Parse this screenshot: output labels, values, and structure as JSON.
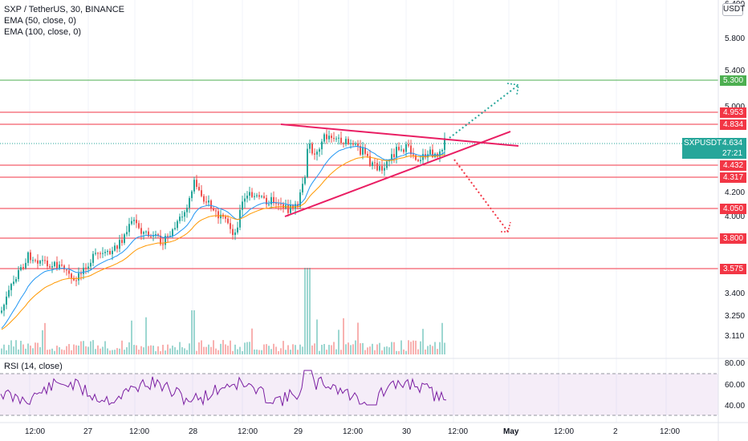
{
  "legend": {
    "title": "SXP / TetherUS, 30, BINANCE",
    "ema50": "EMA (50, close, 0)",
    "ema100": "EMA (100, close, 0)"
  },
  "rsi_legend": "RSI (14, close)",
  "currency_button": "USDT",
  "price_axis_labels": [
    "6.400",
    "5.800",
    "5.400",
    "5.000",
    "4.200",
    "4.000",
    "3.400",
    "3.250",
    "3.110"
  ],
  "rsi_axis_labels": [
    "80.00",
    "60.00",
    "40.00"
  ],
  "time_axis_labels": [
    "12:00",
    "27",
    "12:00",
    "28",
    "12:00",
    "29",
    "12:00",
    "30",
    "12:00",
    "May",
    "12:00",
    "2",
    "12:00"
  ],
  "level_tags": [
    {
      "value": "5.300",
      "color": "#4caf50"
    },
    {
      "value": "4.953",
      "color": "#f23645"
    },
    {
      "value": "4.834",
      "color": "#f23645"
    },
    {
      "value": "4.432",
      "color": "#f23645"
    },
    {
      "value": "4.317",
      "color": "#f23645"
    },
    {
      "value": "4.050",
      "color": "#f23645"
    },
    {
      "value": "3.800",
      "color": "#f23645"
    },
    {
      "value": "3.575",
      "color": "#f23645"
    }
  ],
  "last_price": {
    "symbol": "SXPUSDT",
    "price": "4.634",
    "countdown": "27:21"
  },
  "colors": {
    "up": "#26a69a",
    "down": "#ef5350",
    "ema50": "#2196f3",
    "ema100": "#ff9800",
    "level": "#f23645",
    "target": "#4caf50",
    "rsi": "#7b1fa2",
    "triangle": "#e91e63"
  }
}
